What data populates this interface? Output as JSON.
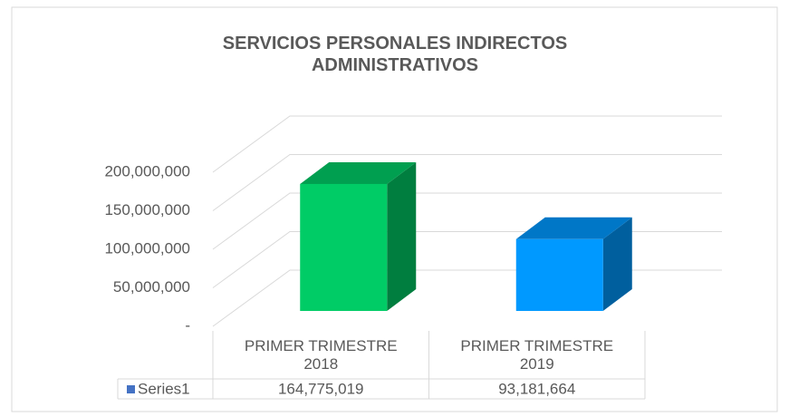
{
  "chart_data": {
    "type": "bar3d",
    "title": "SERVICIOS PERSONALES INDIRECTOS ADMINISTRATIVOS",
    "categories": [
      "PRIMER TRIMESTRE 2018",
      "PRIMER TRIMESTRE 2019"
    ],
    "series": [
      {
        "name": "Series1",
        "color": "#4472c4",
        "point_colors": [
          "#00cc66",
          "#0099ff"
        ],
        "values": [
          164775019,
          93181664
        ],
        "value_labels": [
          "164,775,019",
          "93,181,664"
        ]
      }
    ],
    "ylim": [
      0,
      200000000
    ],
    "yticks": [
      {
        "value": 0,
        "label": "-"
      },
      {
        "value": 50000000,
        "label": "50,000,000"
      },
      {
        "value": 100000000,
        "label": "100,000,000"
      },
      {
        "value": 150000000,
        "label": "150,000,000"
      },
      {
        "value": 200000000,
        "label": "200,000,000"
      }
    ],
    "grid": true,
    "data_table": true
  }
}
